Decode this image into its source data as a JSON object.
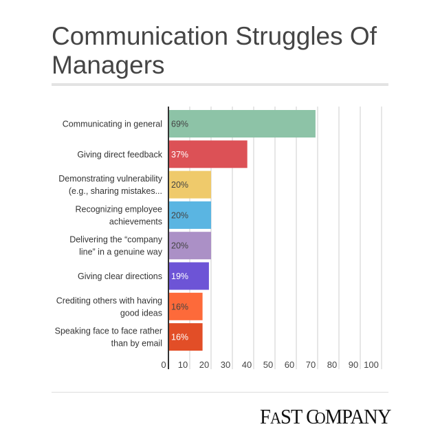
{
  "chart_data": {
    "type": "bar",
    "orientation": "horizontal",
    "title": "Communication Struggles Of Managers",
    "categories": [
      [
        "Communicating in general"
      ],
      [
        "Giving direct feedback"
      ],
      [
        "Demonstrating vulnerability",
        "(e.g., sharing mistakes..."
      ],
      [
        "Recognizing employee",
        "achievements"
      ],
      [
        "Delivering the “company",
        "line” in a genuine way"
      ],
      [
        "Giving clear directions"
      ],
      [
        "Crediting others with having",
        "good ideas"
      ],
      [
        "Speaking face to face rather",
        "than by email"
      ]
    ],
    "values": [
      69,
      37,
      20,
      20,
      20,
      19,
      16,
      16
    ],
    "data_labels": [
      "69%",
      "37%",
      "20%",
      "20%",
      "20%",
      "19%",
      "16%",
      "16%"
    ],
    "colors": [
      "#8dc3a7",
      "#dc5156",
      "#efca6b",
      "#5ab5e2",
      "#ab90c6",
      "#6d54d6",
      "#fd6a3a",
      "#e24e27"
    ],
    "label_colors": [
      "#444444",
      "#ffffff",
      "#444444",
      "#444444",
      "#444444",
      "#ffffff",
      "#444444",
      "#ffffff"
    ],
    "xlim": [
      0,
      100
    ],
    "xticks": [
      "0",
      "10",
      "20",
      "30",
      "40",
      "50",
      "60",
      "70",
      "80",
      "90",
      "100"
    ],
    "grid": true,
    "xlabel": "",
    "ylabel": ""
  },
  "footer": {
    "logo": "FAST COMPANY"
  }
}
